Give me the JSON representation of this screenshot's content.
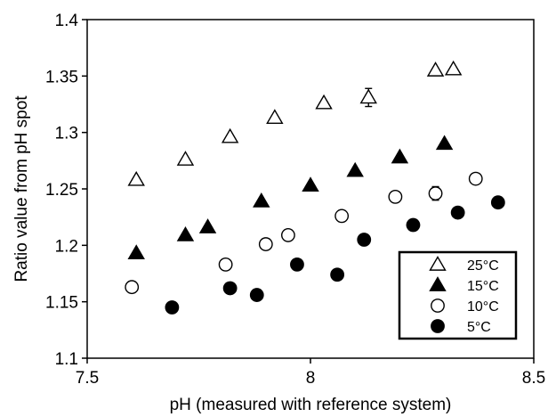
{
  "chart_data": {
    "type": "scatter",
    "xlabel": "pH (measured with reference system)",
    "ylabel": "Ratio value from pH spot",
    "xlim": [
      7.5,
      8.5
    ],
    "ylim": [
      1.1,
      1.4
    ],
    "x_ticks": [
      "7.5",
      "8",
      "8.5"
    ],
    "y_ticks": [
      "1.1",
      "1.15",
      "1.2",
      "1.25",
      "1.3",
      "1.35",
      "1.4"
    ],
    "grid": false,
    "legend_position": "bottom-right",
    "series": [
      {
        "name": "25°C",
        "marker": "triangle-open",
        "color": "#000000",
        "x": [
          7.61,
          7.72,
          7.82,
          7.92,
          8.03,
          8.13,
          8.28,
          8.32
        ],
        "y": [
          1.258,
          1.276,
          1.296,
          1.313,
          1.326,
          1.331,
          1.355,
          1.356
        ],
        "errors": [
          0,
          0,
          0,
          0,
          0,
          0.008,
          0,
          0
        ]
      },
      {
        "name": "15°C",
        "marker": "triangle-filled",
        "color": "#000000",
        "x": [
          7.61,
          7.72,
          7.77,
          7.89,
          8.0,
          8.1,
          8.2,
          8.3
        ],
        "y": [
          1.193,
          1.209,
          1.216,
          1.239,
          1.253,
          1.266,
          1.278,
          1.29
        ],
        "errors": [
          0,
          0,
          0,
          0,
          0,
          0,
          0,
          0
        ]
      },
      {
        "name": "10°C",
        "marker": "circle-open",
        "color": "#000000",
        "x": [
          7.6,
          7.81,
          7.9,
          7.95,
          8.07,
          8.19,
          8.28,
          8.37
        ],
        "y": [
          1.163,
          1.183,
          1.201,
          1.209,
          1.226,
          1.243,
          1.246,
          1.259
        ],
        "errors": [
          0,
          0,
          0,
          0,
          0,
          0,
          0.006,
          0
        ]
      },
      {
        "name": "5°C",
        "marker": "circle-filled",
        "color": "#000000",
        "x": [
          7.69,
          7.82,
          7.88,
          7.97,
          8.06,
          8.12,
          8.23,
          8.33,
          8.42
        ],
        "y": [
          1.145,
          1.162,
          1.156,
          1.183,
          1.174,
          1.205,
          1.218,
          1.229,
          1.238
        ],
        "errors": [
          0.004,
          0,
          0,
          0,
          0,
          0,
          0,
          0,
          0
        ]
      }
    ]
  }
}
